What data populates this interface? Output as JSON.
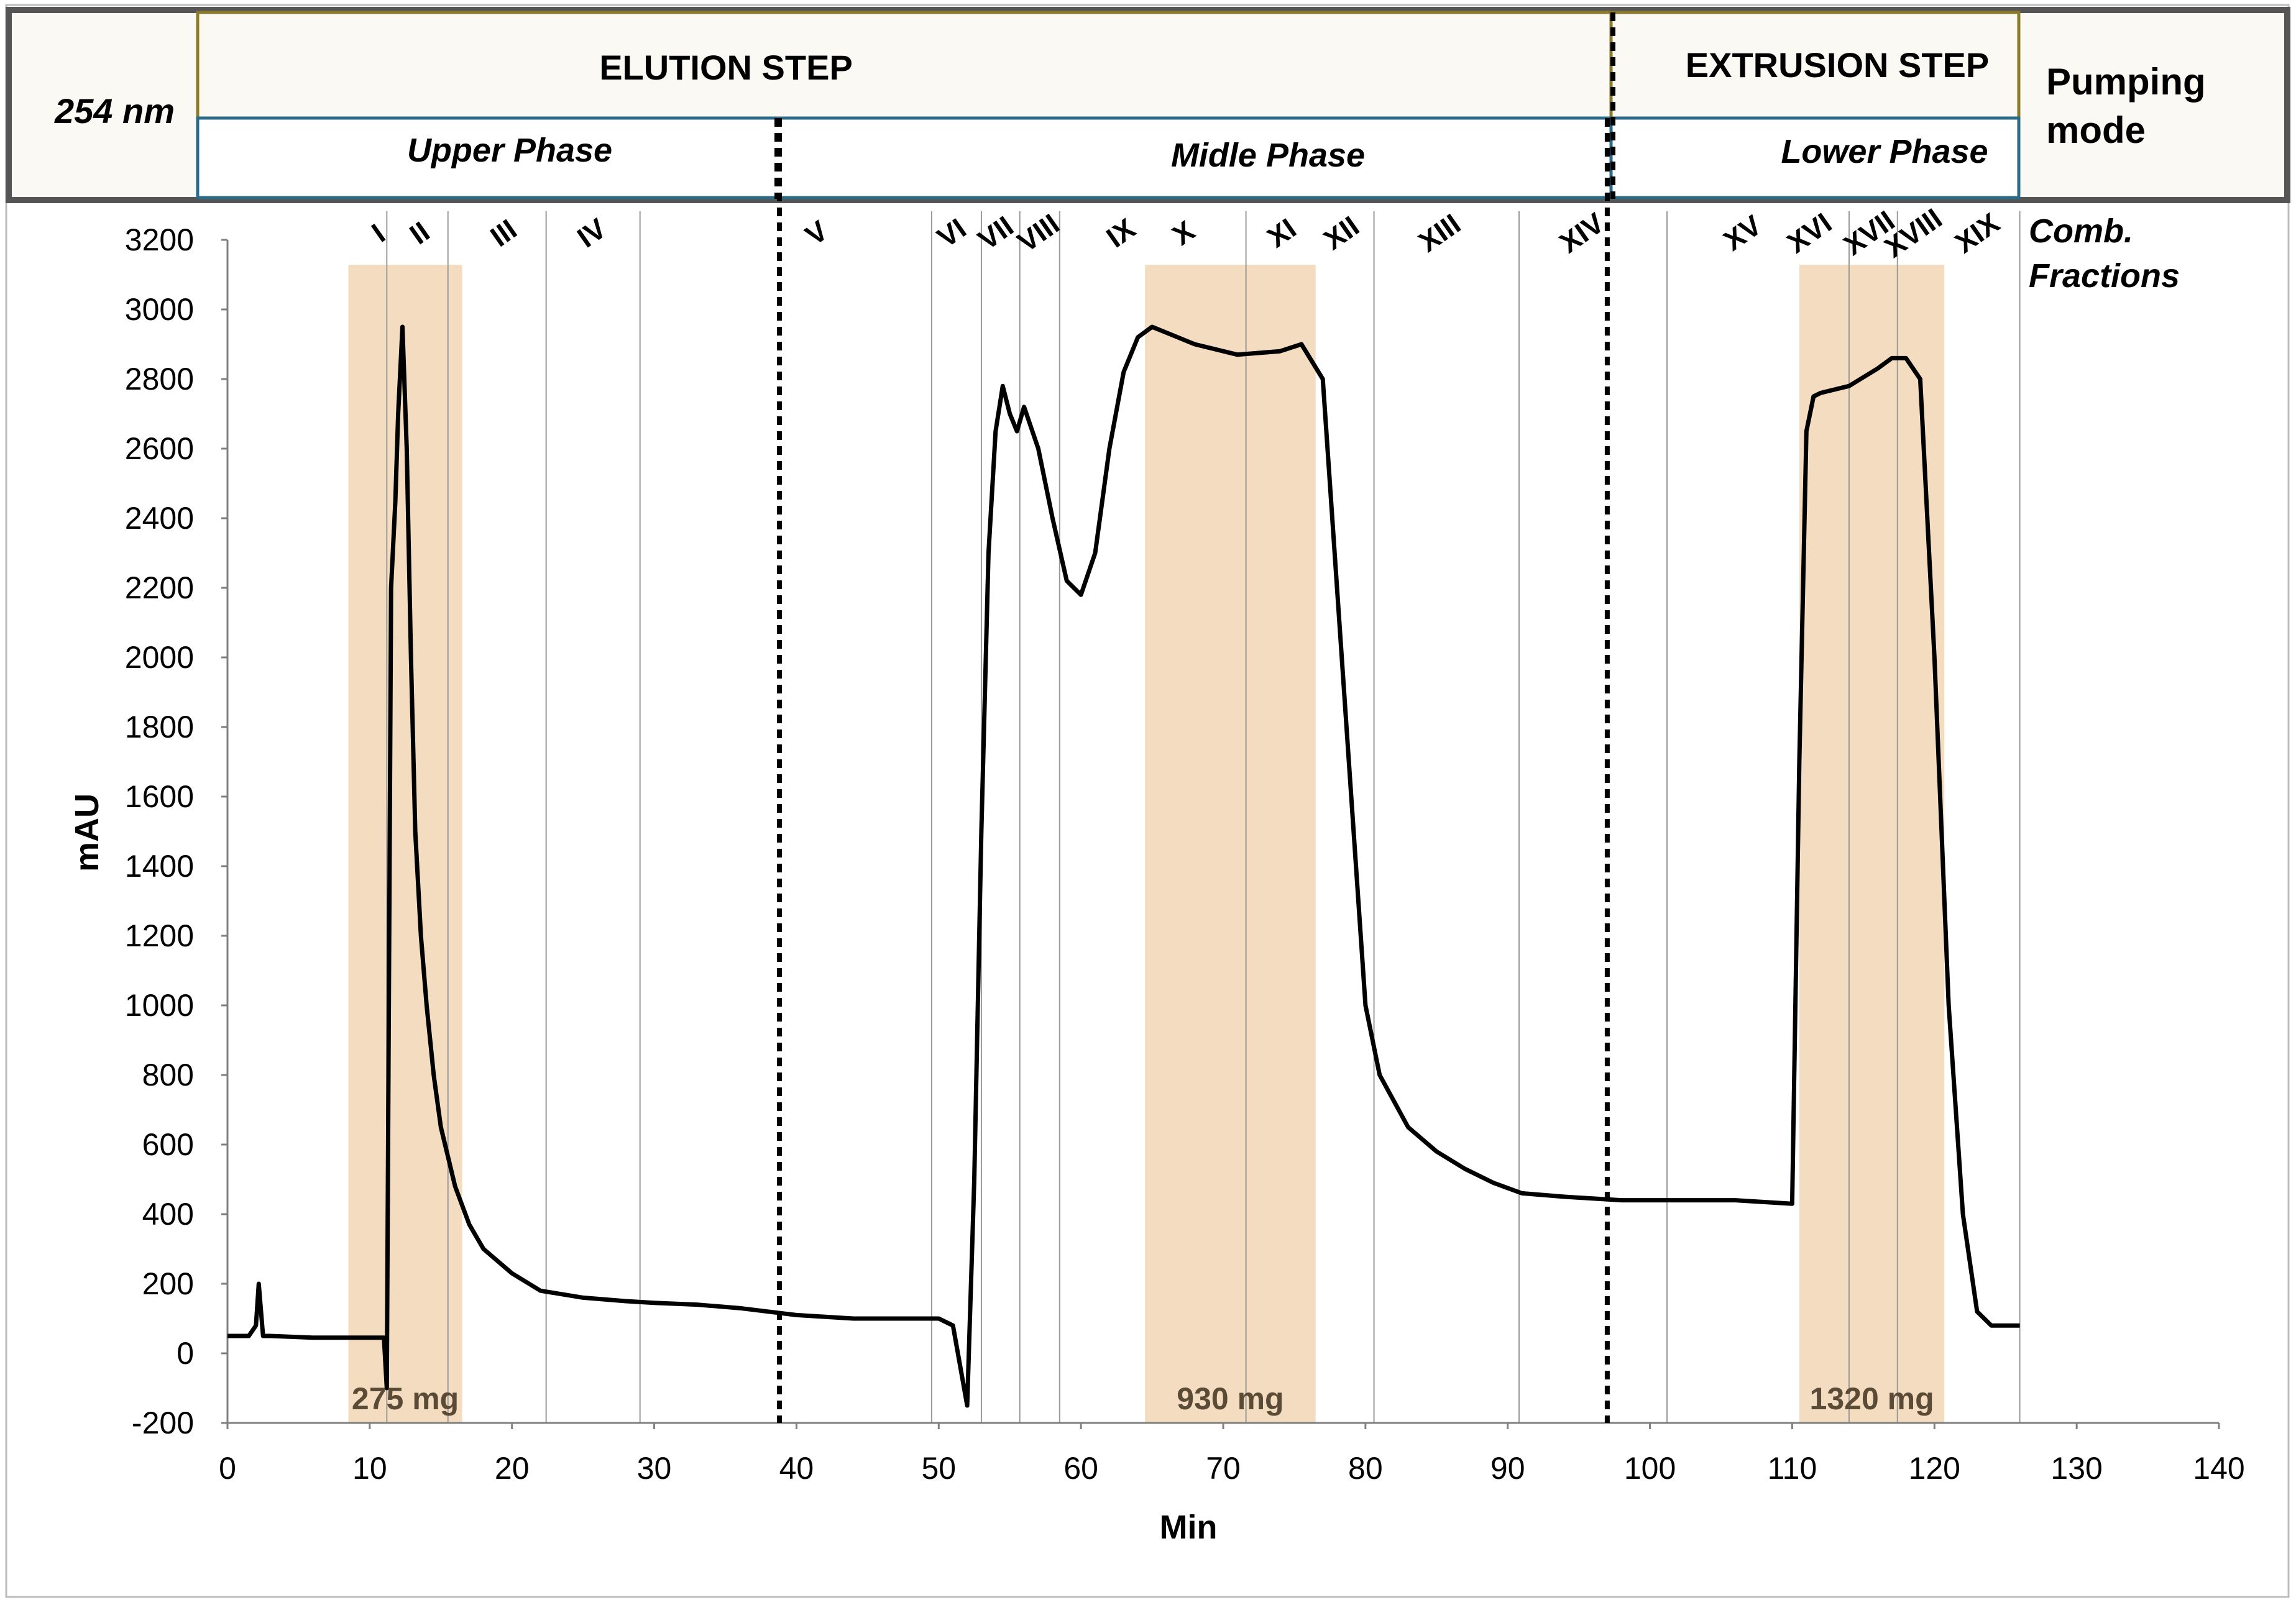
{
  "header": {
    "wavelength_label": "254 nm",
    "elution_step": "ELUTION STEP",
    "extrusion_step": "EXTRUSION STEP",
    "upper_phase": "Upper Phase",
    "middle_phase": "Midle Phase",
    "lower_phase": "Lower Phase",
    "pumping_mode_line1": "Pumping",
    "pumping_mode_line2": "mode"
  },
  "legend": {
    "comb_line1": "Comb.",
    "comb_line2": "Fractions"
  },
  "colors": {
    "band_fill": "#f3dcc0",
    "trace": "#000000",
    "header_border": "#555555",
    "header_fill": "#faf9f3",
    "inner_border": "#8a7a2a",
    "lower_box_border": "#2a6b8a"
  },
  "chart_data": {
    "type": "line",
    "title": "",
    "xlabel": "Min",
    "ylabel": "mAU",
    "xlim": [
      0,
      140
    ],
    "ylim": [
      -200,
      3200
    ],
    "x_ticks": [
      "0",
      "10",
      "20",
      "30",
      "40",
      "50",
      "60",
      "70",
      "80",
      "90",
      "100",
      "110",
      "120",
      "130",
      "140"
    ],
    "y_ticks": [
      "-200",
      "0",
      "200",
      "400",
      "600",
      "800",
      "1000",
      "1200",
      "1400",
      "1600",
      "1800",
      "2000",
      "2200",
      "2400",
      "2600",
      "2800",
      "3000",
      "3200"
    ],
    "series": [
      {
        "name": "254 nm trace",
        "x": [
          0,
          1.5,
          2,
          2.2,
          2.5,
          3,
          6,
          9,
          11,
          11.2,
          11.5,
          11.8,
          12,
          12.3,
          12.6,
          12.9,
          13.2,
          13.6,
          14,
          14.5,
          15,
          16,
          17,
          18,
          20,
          22,
          25,
          28,
          30,
          33,
          36,
          38,
          40,
          44,
          48,
          50,
          51,
          52,
          52.5,
          53,
          53.5,
          54,
          54.5,
          55,
          55.5,
          56,
          57,
          58,
          59,
          60,
          61,
          62,
          63,
          64,
          65,
          68,
          71,
          74,
          75.5,
          77,
          78,
          79,
          80,
          81,
          83,
          85,
          87,
          89,
          91,
          94,
          98,
          102,
          106,
          110,
          110.5,
          111,
          111.5,
          112,
          114,
          116,
          117,
          118,
          119,
          120,
          121,
          122,
          123,
          124,
          125,
          126
        ],
        "values": [
          50,
          50,
          80,
          200,
          50,
          50,
          45,
          45,
          45,
          -100,
          2200,
          2450,
          2700,
          2950,
          2600,
          2000,
          1500,
          1200,
          1000,
          800,
          650,
          480,
          370,
          300,
          230,
          180,
          160,
          150,
          145,
          140,
          130,
          120,
          110,
          100,
          100,
          100,
          80,
          -150,
          500,
          1500,
          2300,
          2650,
          2780,
          2700,
          2650,
          2720,
          2600,
          2400,
          2220,
          2180,
          2300,
          2600,
          2820,
          2920,
          2950,
          2900,
          2870,
          2880,
          2900,
          2800,
          2200,
          1600,
          1000,
          800,
          650,
          580,
          530,
          490,
          460,
          450,
          440,
          440,
          440,
          430,
          1700,
          2650,
          2750,
          2760,
          2780,
          2830,
          2860,
          2860,
          2800,
          2000,
          1000,
          400,
          120,
          80,
          80,
          80
        ]
      }
    ],
    "fraction_labels": [
      "I",
      "II",
      "III",
      "IV",
      "V",
      "VI",
      "VII",
      "VIII",
      "IX",
      "X",
      "XI",
      "XII",
      "XIII",
      "XIV",
      "XV",
      "XVI",
      "XVII",
      "XVIII",
      "XIX"
    ],
    "fraction_boundaries_min": [
      11.2,
      15.5,
      22.4,
      29,
      49.5,
      53,
      55.7,
      58.5,
      71.6,
      80.6,
      90.8,
      101.2,
      114,
      117.4,
      126
    ],
    "phase_boundaries_min": [
      38.8,
      97
    ],
    "combined_fractions": [
      {
        "start": 8.5,
        "end": 16.5,
        "label": "275 mg"
      },
      {
        "start": 64.5,
        "end": 76.5,
        "label": "930 mg"
      },
      {
        "start": 110.5,
        "end": 120.7,
        "label": "1320 mg"
      }
    ]
  }
}
